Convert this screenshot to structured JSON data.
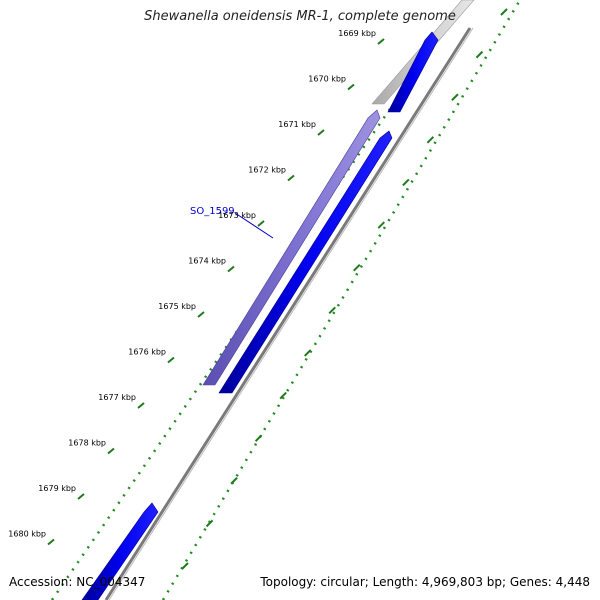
{
  "title": "Shewanella oneidensis MR-1, complete genome",
  "footer": {
    "accession_label": "Accession: NC_004347",
    "summary": "Topology: circular; Length: 4,969,803 bp; Genes: 4,448"
  },
  "genome": {
    "accession": "NC_004347",
    "topology": "circular",
    "length_bp": 4969803,
    "gene_count": 4448
  },
  "ticks": [
    {
      "label": "1669 kbp",
      "kbp": 1669
    },
    {
      "label": "1670 kbp",
      "kbp": 1670
    },
    {
      "label": "1671 kbp",
      "kbp": 1671
    },
    {
      "label": "1672 kbp",
      "kbp": 1672
    },
    {
      "label": "1673 kbp",
      "kbp": 1673
    },
    {
      "label": "1674 kbp",
      "kbp": 1674
    },
    {
      "label": "1675 kbp",
      "kbp": 1675
    },
    {
      "label": "1676 kbp",
      "kbp": 1676
    },
    {
      "label": "1677 kbp",
      "kbp": 1677
    },
    {
      "label": "1678 kbp",
      "kbp": 1678
    },
    {
      "label": "1679 kbp",
      "kbp": 1679
    },
    {
      "label": "1680 kbp",
      "kbp": 1680
    }
  ],
  "highlighted_gene": {
    "label": "SO_1599",
    "color": "#0000cc"
  },
  "colors": {
    "cds": "#0000ee",
    "highlighted_gene": "#7b6fd0",
    "other_feature": "#c8c8c8",
    "backbone": "#777777",
    "gc_ticks": "#228b22"
  }
}
